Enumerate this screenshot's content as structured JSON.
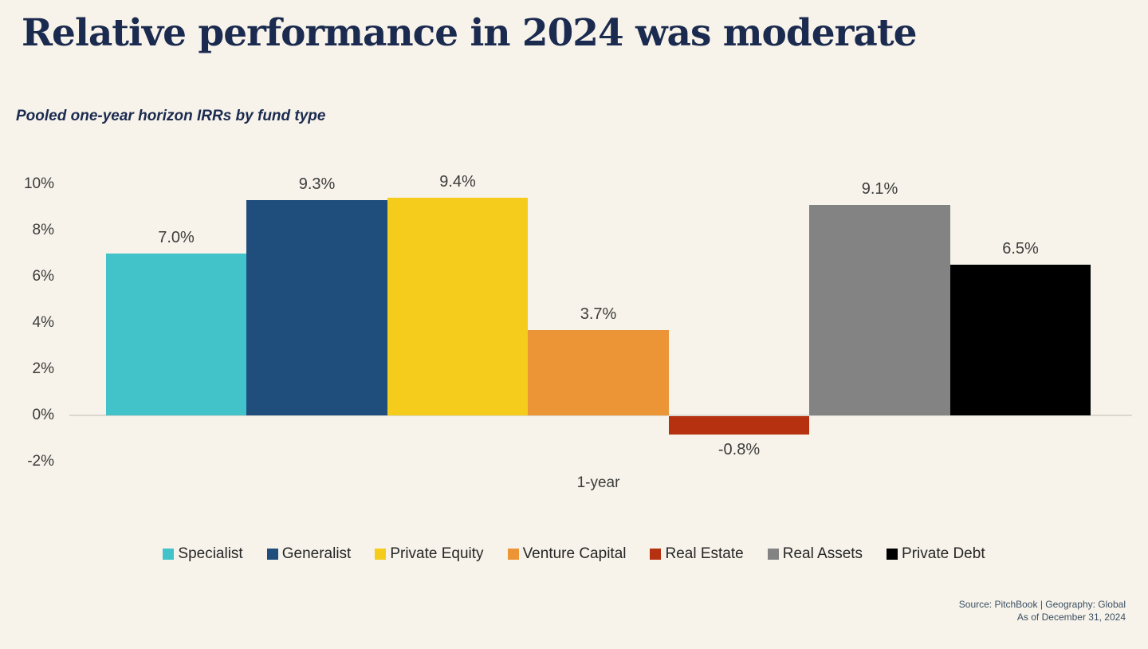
{
  "header": {
    "title": "Relative performance in 2024 was moderate",
    "subtitle": "Pooled one-year horizon IRRs by fund type"
  },
  "chart_data": {
    "type": "bar",
    "title": "Relative performance in 2024 was moderate",
    "subtitle": "Pooled one-year horizon IRRs by fund type",
    "group_label": "1-year",
    "categories": [
      "Specialist",
      "Generalist",
      "Private Equity",
      "Venture Capital",
      "Real Estate",
      "Real Assets",
      "Private Debt"
    ],
    "values": [
      7.0,
      9.3,
      9.4,
      3.7,
      -0.8,
      9.1,
      6.5
    ],
    "value_labels": [
      "7.0%",
      "9.3%",
      "9.4%",
      "3.7%",
      "-0.8%",
      "9.1%",
      "6.5%"
    ],
    "colors": [
      "#42C3C9",
      "#1F4E7D",
      "#F5CB1C",
      "#EB9537",
      "#B53110",
      "#838383",
      "#000000"
    ],
    "xlabel": "",
    "ylabel": "",
    "ylim": [
      -2,
      10
    ],
    "y_ticks": [
      {
        "value": 10,
        "label": "10%"
      },
      {
        "value": 8,
        "label": "8%"
      },
      {
        "value": 6,
        "label": "6%"
      },
      {
        "value": 4,
        "label": "4%"
      },
      {
        "value": 2,
        "label": "2%"
      },
      {
        "value": 0,
        "label": "0%"
      },
      {
        "value": -2,
        "label": "-2%"
      }
    ],
    "grid": false,
    "legend_position": "bottom"
  },
  "footer": {
    "source_line1": "Source: PitchBook | Geography: Global",
    "source_line2": "As of December 31, 2024"
  },
  "colors": {
    "background": "#F7F3EA",
    "title_text": "#1B2A4F",
    "axis_line": "#DAD7CE",
    "tick_text": "#3B3B3B",
    "value_label_text": "#3D3D3D",
    "legend_text": "#262626",
    "source_text": "#3A4F63"
  }
}
